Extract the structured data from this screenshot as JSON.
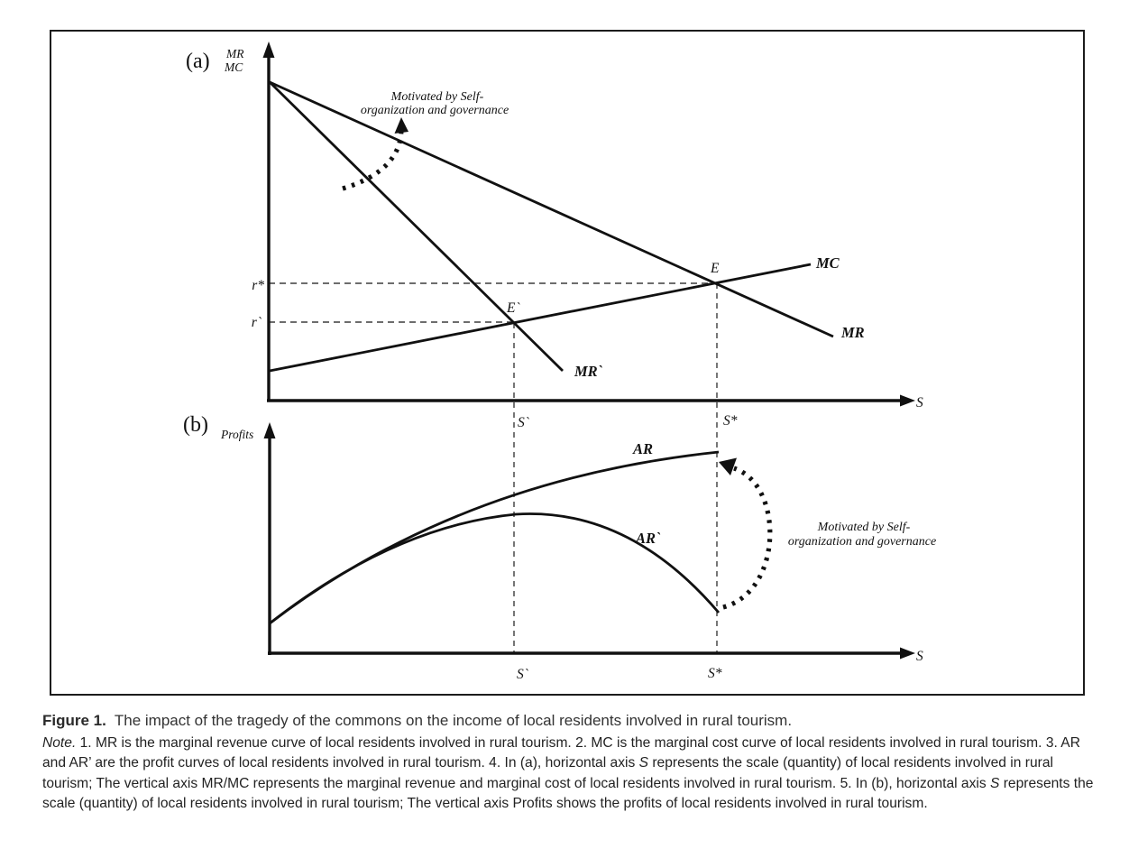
{
  "figure": {
    "panel_a": {
      "label": "(a)",
      "y_axis_label_line1": "MR",
      "y_axis_label_line2": "MC",
      "x_axis_label": "S",
      "curve_mr": "MR",
      "curve_mr_prime": "MR`",
      "curve_mc": "MC",
      "point_e": "E",
      "point_e_prime": "E`",
      "tick_r_star": "r*",
      "tick_r_prime": "r`",
      "tick_s_prime": "S`",
      "tick_s_star": "S*",
      "annotation_line1": "Motivated by Self-",
      "annotation_line2": "organization and governance"
    },
    "panel_b": {
      "label": "(b)",
      "y_axis_label": "Profits",
      "x_axis_label": "S",
      "curve_ar": "AR",
      "curve_ar_prime": "AR`",
      "tick_s_prime": "S`",
      "tick_s_star": "S*",
      "annotation_line1": "Motivated by Self-",
      "annotation_line2": "organization and governance"
    },
    "line_color": "#111111",
    "dash_color": "#3d3d3d"
  },
  "caption": {
    "label": "Figure 1.",
    "title": "The impact of the tragedy of the commons on the income of local residents involved in rural tourism.",
    "note_segments": [
      {
        "text": "Note.",
        "italic": true
      },
      {
        "text": " 1. MR is the marginal revenue curve of local residents involved in rural tourism. 2. MC is the marginal cost curve of local residents involved in rural tourism. 3. AR and AR’ are the profit curves of local residents involved in rural tourism. 4. In (a), horizontal axis ",
        "italic": false
      },
      {
        "text": "S",
        "italic": true
      },
      {
        "text": " represents the scale (quantity) of local residents involved in rural tourism; The vertical axis MR/MC represents the marginal revenue and marginal cost of local residents involved in rural tourism. 5. In (b), horizontal axis ",
        "italic": false
      },
      {
        "text": "S",
        "italic": true
      },
      {
        "text": " represents the scale (quantity) of local residents involved in rural tourism; The vertical axis Profits shows the profits of local residents involved in rural tourism.",
        "italic": false
      }
    ]
  }
}
